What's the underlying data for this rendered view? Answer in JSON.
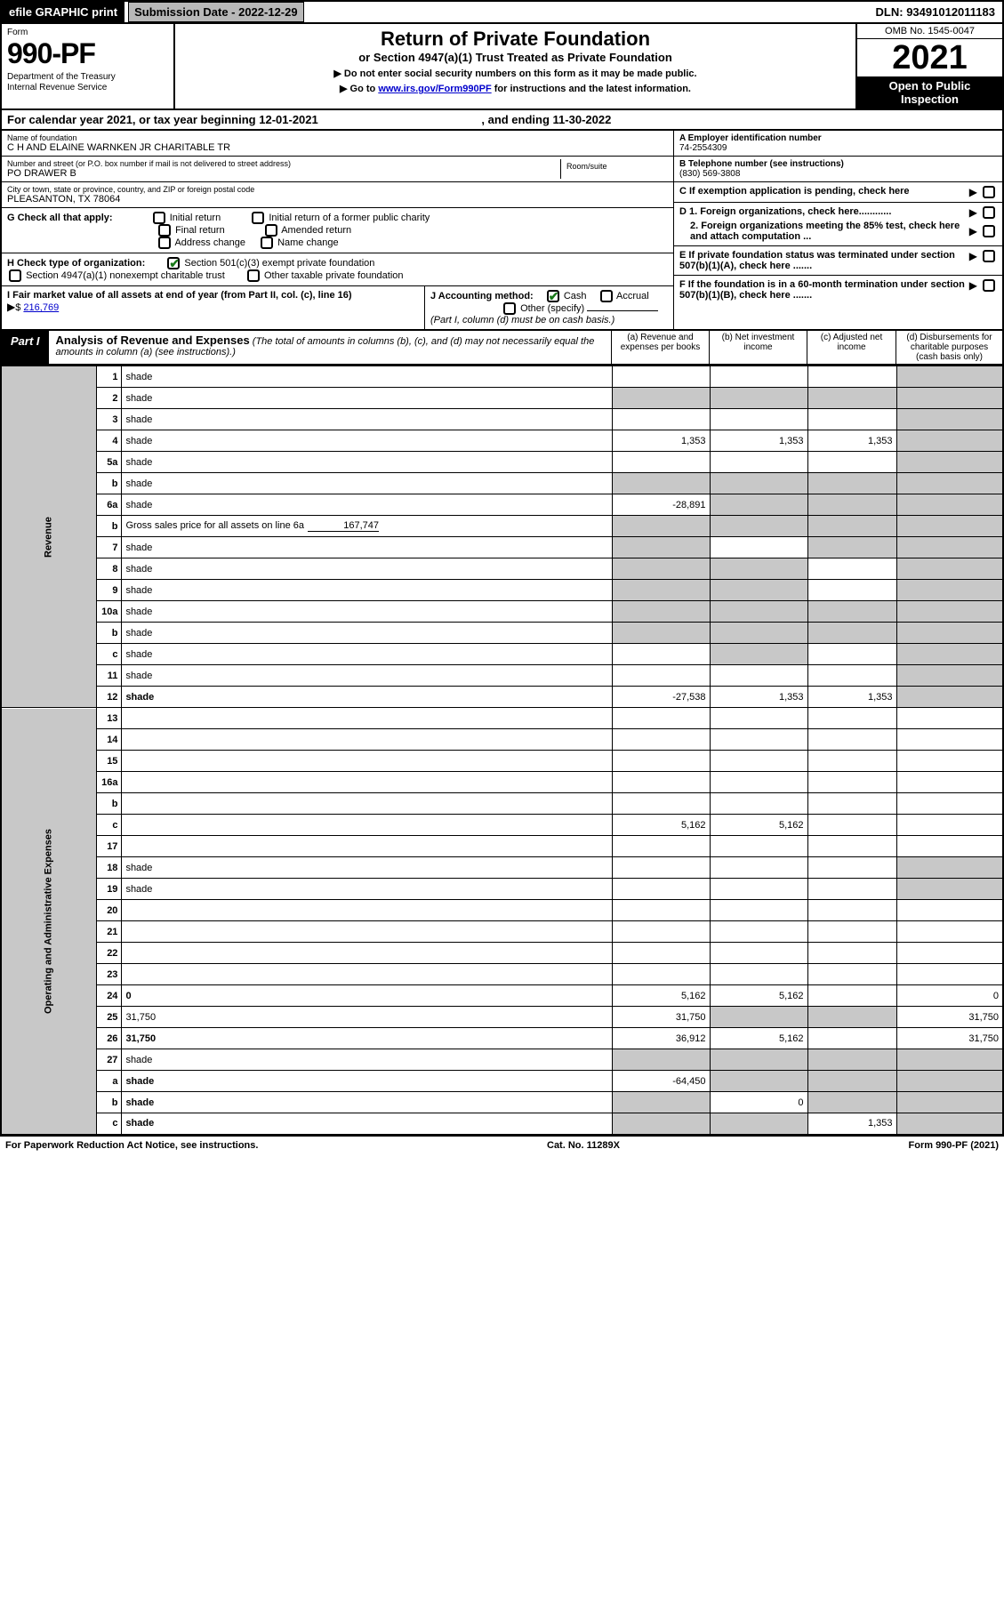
{
  "top": {
    "efile": "efile GRAPHIC print",
    "sub_date_label": "Submission Date - 2022-12-29",
    "dln": "DLN: 93491012011183"
  },
  "header": {
    "form_label": "Form",
    "form_num": "990-PF",
    "dept": "Department of the Treasury\nInternal Revenue Service",
    "title": "Return of Private Foundation",
    "subtitle": "or Section 4947(a)(1) Trust Treated as Private Foundation",
    "instr1": "▶ Do not enter social security numbers on this form as it may be made public.",
    "instr2_pre": "▶ Go to ",
    "instr2_link": "www.irs.gov/Form990PF",
    "instr2_post": " for instructions and the latest information.",
    "omb": "OMB No. 1545-0047",
    "year": "2021",
    "open_pub": "Open to Public Inspection"
  },
  "cal": {
    "text_pre": "For calendar year 2021, or tax year beginning ",
    "begin": "12-01-2021",
    "mid": " , and ending ",
    "end": "11-30-2022"
  },
  "entity": {
    "name_label": "Name of foundation",
    "name": "C H AND ELAINE WARNKEN JR CHARITABLE TR",
    "addr_label": "Number and street (or P.O. box number if mail is not delivered to street address)",
    "addr": "PO DRAWER B",
    "room_label": "Room/suite",
    "city_label": "City or town, state or province, country, and ZIP or foreign postal code",
    "city": "PLEASANTON, TX  78064",
    "ein_label": "A Employer identification number",
    "ein": "74-2554309",
    "tel_label": "B Telephone number (see instructions)",
    "tel": "(830) 569-3808",
    "c_label": "C If exemption application is pending, check here",
    "d1": "D 1. Foreign organizations, check here............",
    "d2": "2. Foreign organizations meeting the 85% test, check here and attach computation ...",
    "e_label": "E  If private foundation status was terminated under section 507(b)(1)(A), check here .......",
    "f_label": "F  If the foundation is in a 60-month termination under section 507(b)(1)(B), check here .......",
    "g_label": "G Check all that apply:",
    "g_opts": [
      "Initial return",
      "Initial return of a former public charity",
      "Final return",
      "Amended return",
      "Address change",
      "Name change"
    ],
    "h_label": "H Check type of organization:",
    "h1": "Section 501(c)(3) exempt private foundation",
    "h2": "Section 4947(a)(1) nonexempt charitable trust",
    "h3": "Other taxable private foundation",
    "i_label": "I Fair market value of all assets at end of year (from Part II, col. (c), line 16)",
    "i_val": "216,769",
    "j_label": "J Accounting method:",
    "j_cash": "Cash",
    "j_accrual": "Accrual",
    "j_other": "Other (specify)",
    "j_note": "(Part I, column (d) must be on cash basis.)"
  },
  "part1": {
    "tag": "Part I",
    "title": "Analysis of Revenue and Expenses",
    "note": " (The total of amounts in columns (b), (c), and (d) may not necessarily equal the amounts in column (a) (see instructions).)",
    "col_a": "(a)   Revenue and expenses per books",
    "col_b": "(b)   Net investment income",
    "col_c": "(c)   Adjusted net income",
    "col_d": "(d)   Disbursements for charitable purposes (cash basis only)",
    "vlabel_rev": "Revenue",
    "vlabel_exp": "Operating and Administrative Expenses",
    "gross_sales_inline": "167,747"
  },
  "rows": [
    {
      "n": "1",
      "d": "shade",
      "a": "",
      "b": "",
      "c": ""
    },
    {
      "n": "2",
      "d": "shade",
      "a": "shade",
      "b": "shade",
      "c": "shade"
    },
    {
      "n": "3",
      "d": "shade",
      "a": "",
      "b": "",
      "c": ""
    },
    {
      "n": "4",
      "d": "shade",
      "a": "1,353",
      "b": "1,353",
      "c": "1,353"
    },
    {
      "n": "5a",
      "d": "shade",
      "a": "",
      "b": "",
      "c": ""
    },
    {
      "n": "b",
      "d": "shade",
      "a": "shade",
      "b": "shade",
      "c": "shade"
    },
    {
      "n": "6a",
      "d": "shade",
      "a": "-28,891",
      "b": "shade",
      "c": "shade"
    },
    {
      "n": "b",
      "d": "shade",
      "a": "shade",
      "b": "shade",
      "c": "shade"
    },
    {
      "n": "7",
      "d": "shade",
      "a": "shade",
      "b": "",
      "c": "shade"
    },
    {
      "n": "8",
      "d": "shade",
      "a": "shade",
      "b": "shade",
      "c": ""
    },
    {
      "n": "9",
      "d": "shade",
      "a": "shade",
      "b": "shade",
      "c": ""
    },
    {
      "n": "10a",
      "d": "shade",
      "a": "shade",
      "b": "shade",
      "c": "shade"
    },
    {
      "n": "b",
      "d": "shade",
      "a": "shade",
      "b": "shade",
      "c": "shade"
    },
    {
      "n": "c",
      "d": "shade",
      "a": "",
      "b": "shade",
      "c": ""
    },
    {
      "n": "11",
      "d": "shade",
      "a": "",
      "b": "",
      "c": ""
    },
    {
      "n": "12",
      "d": "shade",
      "a": "-27,538",
      "b": "1,353",
      "c": "1,353",
      "bold": true
    },
    {
      "n": "13",
      "d": "",
      "a": "",
      "b": "",
      "c": ""
    },
    {
      "n": "14",
      "d": "",
      "a": "",
      "b": "",
      "c": ""
    },
    {
      "n": "15",
      "d": "",
      "a": "",
      "b": "",
      "c": ""
    },
    {
      "n": "16a",
      "d": "",
      "a": "",
      "b": "",
      "c": ""
    },
    {
      "n": "b",
      "d": "",
      "a": "",
      "b": "",
      "c": ""
    },
    {
      "n": "c",
      "d": "",
      "a": "5,162",
      "b": "5,162",
      "c": ""
    },
    {
      "n": "17",
      "d": "",
      "a": "",
      "b": "",
      "c": ""
    },
    {
      "n": "18",
      "d": "shade",
      "a": "",
      "b": "",
      "c": ""
    },
    {
      "n": "19",
      "d": "shade",
      "a": "",
      "b": "",
      "c": ""
    },
    {
      "n": "20",
      "d": "",
      "a": "",
      "b": "",
      "c": ""
    },
    {
      "n": "21",
      "d": "",
      "a": "",
      "b": "",
      "c": ""
    },
    {
      "n": "22",
      "d": "",
      "a": "",
      "b": "",
      "c": ""
    },
    {
      "n": "23",
      "d": "",
      "a": "",
      "b": "",
      "c": ""
    },
    {
      "n": "24",
      "d": "0",
      "a": "5,162",
      "b": "5,162",
      "c": "",
      "bold": true
    },
    {
      "n": "25",
      "d": "31,750",
      "a": "31,750",
      "b": "shade",
      "c": "shade"
    },
    {
      "n": "26",
      "d": "31,750",
      "a": "36,912",
      "b": "5,162",
      "c": "",
      "bold": true
    },
    {
      "n": "27",
      "d": "shade",
      "a": "shade",
      "b": "shade",
      "c": "shade"
    },
    {
      "n": "a",
      "d": "shade",
      "a": "-64,450",
      "b": "shade",
      "c": "shade",
      "bold": true
    },
    {
      "n": "b",
      "d": "shade",
      "a": "shade",
      "b": "0",
      "c": "shade",
      "bold": true
    },
    {
      "n": "c",
      "d": "shade",
      "a": "shade",
      "b": "shade",
      "c": "1,353",
      "bold": true
    }
  ],
  "footer": {
    "left": "For Paperwork Reduction Act Notice, see instructions.",
    "mid": "Cat. No. 11289X",
    "right": "Form 990-PF (2021)"
  }
}
